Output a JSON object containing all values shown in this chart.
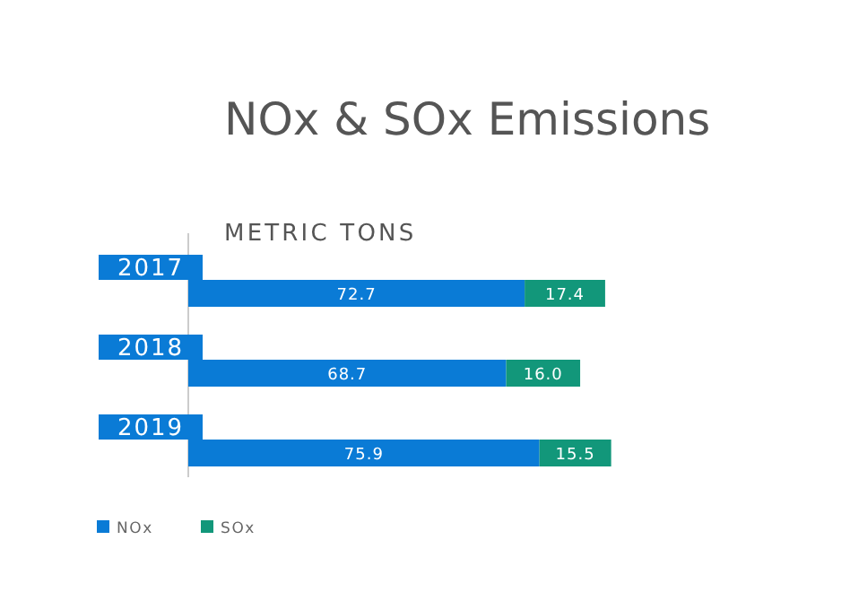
{
  "chart_data": {
    "type": "bar",
    "orientation": "horizontal",
    "stacked": true,
    "title": "NOx & SOx Emissions",
    "subtitle": "METRIC TONS",
    "categories": [
      "2017",
      "2018",
      "2019"
    ],
    "series": [
      {
        "name": "NOx",
        "color": "#0a7bd6",
        "values": [
          72.7,
          68.7,
          75.9
        ],
        "value_labels": [
          "72.7",
          "68.7",
          "75.9"
        ]
      },
      {
        "name": "SOx",
        "color": "#12977a",
        "values": [
          17.4,
          16.0,
          15.5
        ],
        "value_labels": [
          "17.4",
          "16.0",
          "15.5"
        ]
      }
    ],
    "legend": "bottom left"
  }
}
